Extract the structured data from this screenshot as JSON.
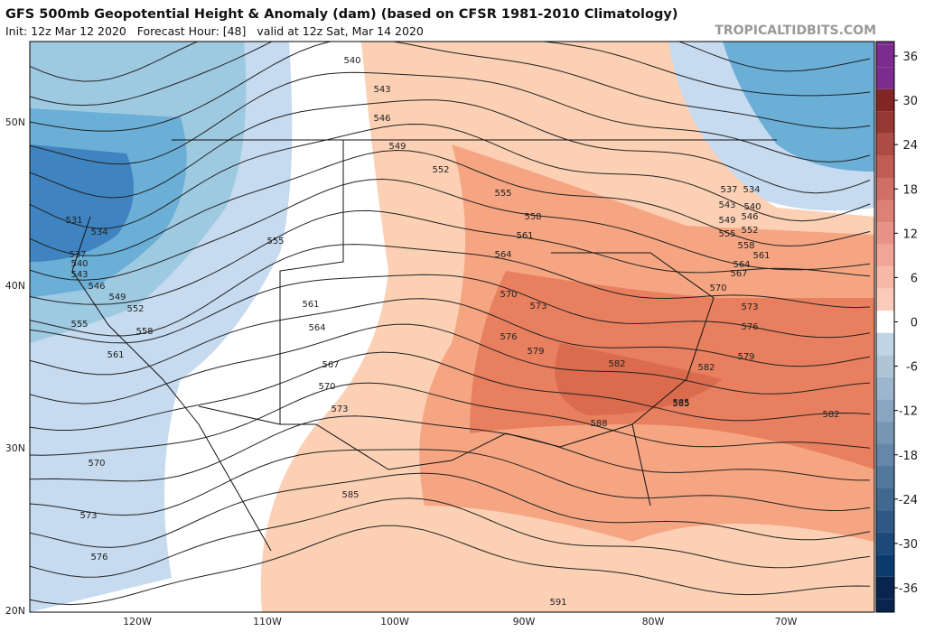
{
  "header": {
    "title": "GFS 500mb Geopotential Height & Anomaly (dam) (based on CFSR 1981-2010 Climatology)",
    "subtitle": "Init: 12z Mar 12 2020   Forecast Hour: [48]   valid at 12z Sat, Mar 14 2020",
    "site": "TROPICALTIDBITS.COM"
  },
  "colorbar": {
    "ticks": [
      36,
      30,
      24,
      18,
      12,
      6,
      0,
      -6,
      -12,
      -18,
      -24,
      -30,
      -36
    ]
  },
  "map": {
    "latitude_labels": [
      "50N",
      "40N",
      "30N",
      "20N"
    ],
    "longitude_labels": [
      "120W",
      "110W",
      "100W",
      "90W",
      "80W",
      "70W"
    ],
    "contour_labels": [
      "540",
      "543",
      "546",
      "549",
      "552",
      "555",
      "558",
      "561",
      "564",
      "570",
      "573",
      "576",
      "579",
      "582",
      "585",
      "588",
      "591",
      "531",
      "534",
      "537",
      "540",
      "543",
      "546",
      "549",
      "552",
      "555",
      "558",
      "561",
      "570",
      "573",
      "576",
      "555",
      "561",
      "564",
      "567",
      "570",
      "573",
      "585",
      "537",
      "534",
      "543",
      "540",
      "546",
      "549",
      "555",
      "552",
      "558",
      "561",
      "564",
      "567",
      "570",
      "573",
      "576",
      "579",
      "582",
      "585",
      "582"
    ]
  }
}
